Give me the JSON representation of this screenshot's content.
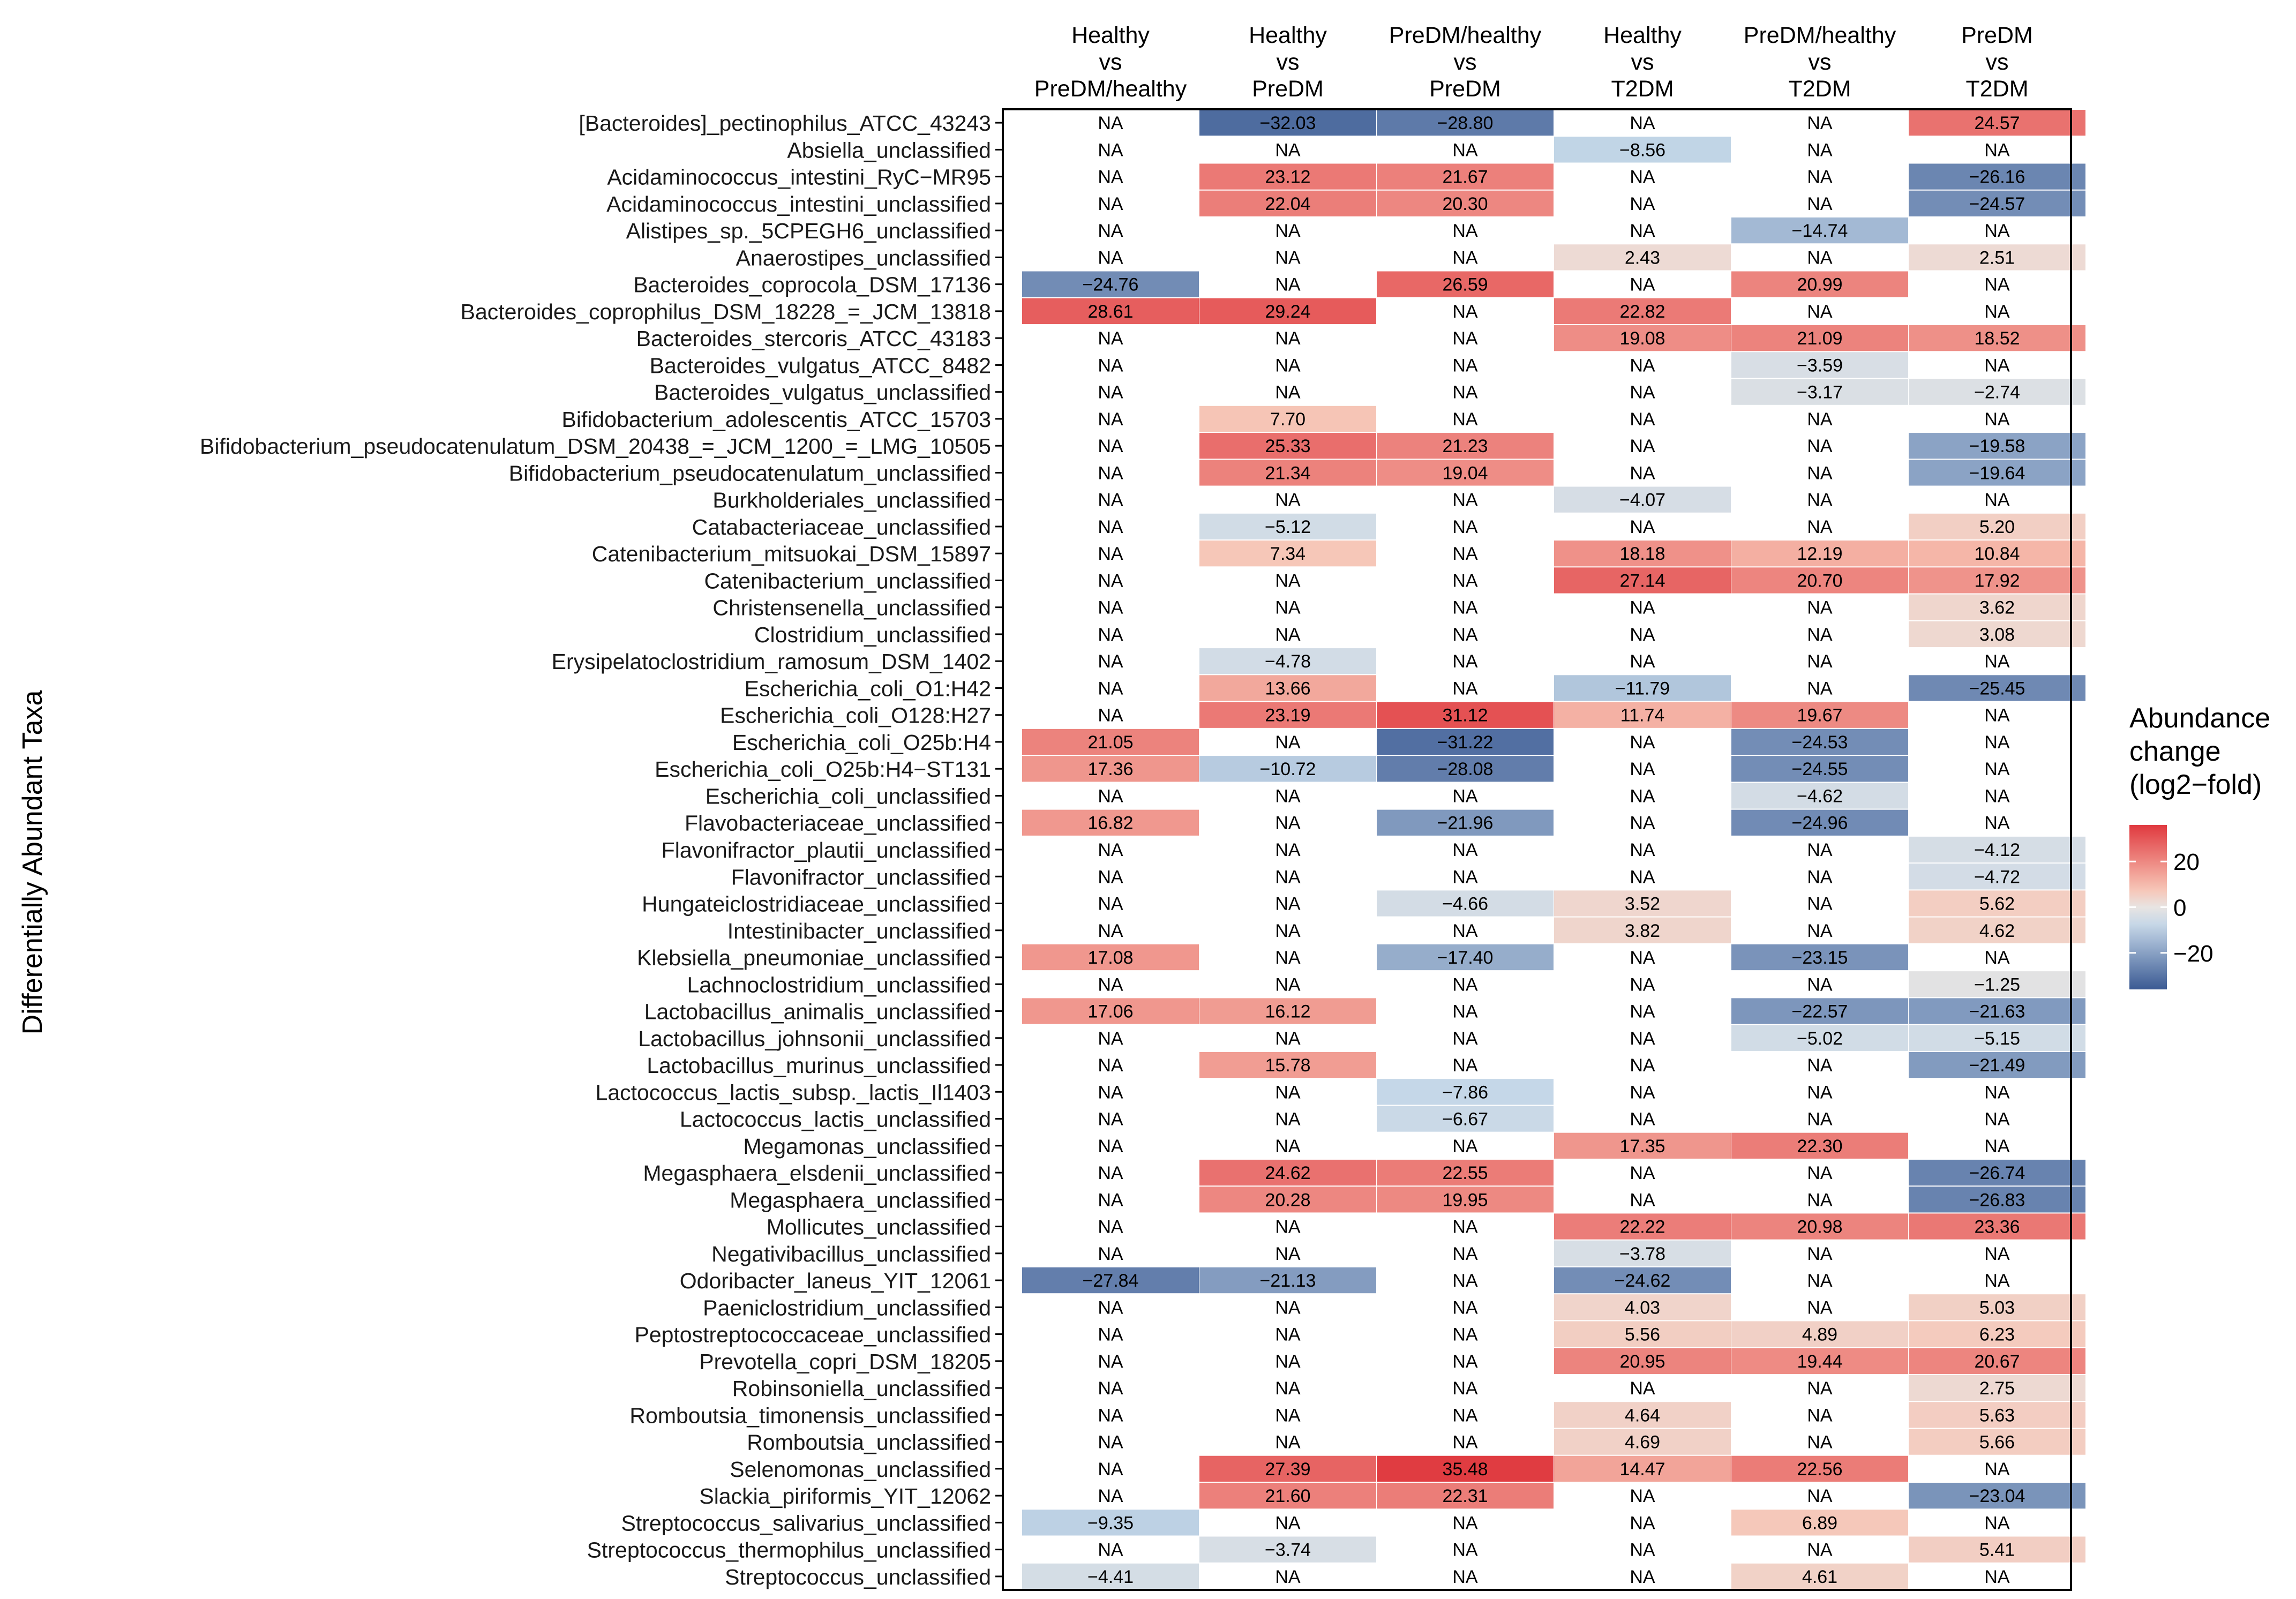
{
  "chart_data": {
    "type": "heatmap",
    "ylabel": "Differentially Abundant Taxa",
    "columns": [
      [
        "Healthy",
        "vs",
        "PreDM/healthy"
      ],
      [
        "Healthy",
        "vs",
        "PreDM"
      ],
      [
        "PreDM/healthy",
        "vs",
        "PreDM"
      ],
      [
        "Healthy",
        "vs",
        "T2DM"
      ],
      [
        "PreDM/healthy",
        "vs",
        "T2DM"
      ],
      [
        "PreDM",
        "vs",
        "T2DM"
      ]
    ],
    "rows": [
      "[Bacteroides]_pectinophilus_ATCC_43243",
      "Absiella_unclassified",
      "Acidaminococcus_intestini_RyC−MR95",
      "Acidaminococcus_intestini_unclassified",
      "Alistipes_sp._5CPEGH6_unclassified",
      "Anaerostipes_unclassified",
      "Bacteroides_coprocola_DSM_17136",
      "Bacteroides_coprophilus_DSM_18228_=_JCM_13818",
      "Bacteroides_stercoris_ATCC_43183",
      "Bacteroides_vulgatus_ATCC_8482",
      "Bacteroides_vulgatus_unclassified",
      "Bifidobacterium_adolescentis_ATCC_15703",
      "Bifidobacterium_pseudocatenulatum_DSM_20438_=_JCM_1200_=_LMG_10505",
      "Bifidobacterium_pseudocatenulatum_unclassified",
      "Burkholderiales_unclassified",
      "Catabacteriaceae_unclassified",
      "Catenibacterium_mitsuokai_DSM_15897",
      "Catenibacterium_unclassified",
      "Christensenella_unclassified",
      "Clostridium_unclassified",
      "Erysipelatoclostridium_ramosum_DSM_1402",
      "Escherichia_coli_O1:H42",
      "Escherichia_coli_O128:H27",
      "Escherichia_coli_O25b:H4",
      "Escherichia_coli_O25b:H4−ST131",
      "Escherichia_coli_unclassified",
      "Flavobacteriaceae_unclassified",
      "Flavonifractor_plautii_unclassified",
      "Flavonifractor_unclassified",
      "Hungateiclostridiaceae_unclassified",
      "Intestinibacter_unclassified",
      "Klebsiella_pneumoniae_unclassified",
      "Lachnoclostridium_unclassified",
      "Lactobacillus_animalis_unclassified",
      "Lactobacillus_johnsonii_unclassified",
      "Lactobacillus_murinus_unclassified",
      "Lactococcus_lactis_subsp._lactis_Il1403",
      "Lactococcus_lactis_unclassified",
      "Megamonas_unclassified",
      "Megasphaera_elsdenii_unclassified",
      "Megasphaera_unclassified",
      "Mollicutes_unclassified",
      "Negativibacillus_unclassified",
      "Odoribacter_laneus_YIT_12061",
      "Paeniclostridium_unclassified",
      "Peptostreptococcaceae_unclassified",
      "Prevotella_copri_DSM_18205",
      "Robinsoniella_unclassified",
      "Romboutsia_timonensis_unclassified",
      "Romboutsia_unclassified",
      "Selenomonas_unclassified",
      "Slackia_piriformis_YIT_12062",
      "Streptococcus_salivarius_unclassified",
      "Streptococcus_thermophilus_unclassified",
      "Streptococcus_unclassified"
    ],
    "values": [
      [
        "NA",
        "−32.03",
        "−28.80",
        "NA",
        "NA",
        "24.57"
      ],
      [
        "NA",
        "NA",
        "NA",
        "−8.56",
        "NA",
        "NA"
      ],
      [
        "NA",
        "23.12",
        "21.67",
        "NA",
        "NA",
        "−26.16"
      ],
      [
        "NA",
        "22.04",
        "20.30",
        "NA",
        "NA",
        "−24.57"
      ],
      [
        "NA",
        "NA",
        "NA",
        "NA",
        "−14.74",
        "NA"
      ],
      [
        "NA",
        "NA",
        "NA",
        "2.43",
        "NA",
        "2.51"
      ],
      [
        "−24.76",
        "NA",
        "26.59",
        "NA",
        "20.99",
        "NA"
      ],
      [
        "28.61",
        "29.24",
        "NA",
        "22.82",
        "NA",
        "NA"
      ],
      [
        "NA",
        "NA",
        "NA",
        "19.08",
        "21.09",
        "18.52"
      ],
      [
        "NA",
        "NA",
        "NA",
        "NA",
        "−3.59",
        "NA"
      ],
      [
        "NA",
        "NA",
        "NA",
        "NA",
        "−3.17",
        "−2.74"
      ],
      [
        "NA",
        "7.70",
        "NA",
        "NA",
        "NA",
        "NA"
      ],
      [
        "NA",
        "25.33",
        "21.23",
        "NA",
        "NA",
        "−19.58"
      ],
      [
        "NA",
        "21.34",
        "19.04",
        "NA",
        "NA",
        "−19.64"
      ],
      [
        "NA",
        "NA",
        "NA",
        "−4.07",
        "NA",
        "NA"
      ],
      [
        "NA",
        "−5.12",
        "NA",
        "NA",
        "NA",
        "5.20"
      ],
      [
        "NA",
        "7.34",
        "NA",
        "18.18",
        "12.19",
        "10.84"
      ],
      [
        "NA",
        "NA",
        "NA",
        "27.14",
        "20.70",
        "17.92"
      ],
      [
        "NA",
        "NA",
        "NA",
        "NA",
        "NA",
        "3.62"
      ],
      [
        "NA",
        "NA",
        "NA",
        "NA",
        "NA",
        "3.08"
      ],
      [
        "NA",
        "−4.78",
        "NA",
        "NA",
        "NA",
        "NA"
      ],
      [
        "NA",
        "13.66",
        "NA",
        "−11.79",
        "NA",
        "−25.45"
      ],
      [
        "NA",
        "23.19",
        "31.12",
        "11.74",
        "19.67",
        "NA"
      ],
      [
        "21.05",
        "NA",
        "−31.22",
        "NA",
        "−24.53",
        "NA"
      ],
      [
        "17.36",
        "−10.72",
        "−28.08",
        "NA",
        "−24.55",
        "NA"
      ],
      [
        "NA",
        "NA",
        "NA",
        "NA",
        "−4.62",
        "NA"
      ],
      [
        "16.82",
        "NA",
        "−21.96",
        "NA",
        "−24.96",
        "NA"
      ],
      [
        "NA",
        "NA",
        "NA",
        "NA",
        "NA",
        "−4.12"
      ],
      [
        "NA",
        "NA",
        "NA",
        "NA",
        "NA",
        "−4.72"
      ],
      [
        "NA",
        "NA",
        "−4.66",
        "3.52",
        "NA",
        "5.62"
      ],
      [
        "NA",
        "NA",
        "NA",
        "3.82",
        "NA",
        "4.62"
      ],
      [
        "17.08",
        "NA",
        "−17.40",
        "NA",
        "−23.15",
        "NA"
      ],
      [
        "NA",
        "NA",
        "NA",
        "NA",
        "NA",
        "−1.25"
      ],
      [
        "17.06",
        "16.12",
        "NA",
        "NA",
        "−22.57",
        "−21.63"
      ],
      [
        "NA",
        "NA",
        "NA",
        "NA",
        "−5.02",
        "−5.15"
      ],
      [
        "NA",
        "15.78",
        "NA",
        "NA",
        "NA",
        "−21.49"
      ],
      [
        "NA",
        "NA",
        "−7.86",
        "NA",
        "NA",
        "NA"
      ],
      [
        "NA",
        "NA",
        "−6.67",
        "NA",
        "NA",
        "NA"
      ],
      [
        "NA",
        "NA",
        "NA",
        "17.35",
        "22.30",
        "NA"
      ],
      [
        "NA",
        "24.62",
        "22.55",
        "NA",
        "NA",
        "−26.74"
      ],
      [
        "NA",
        "20.28",
        "19.95",
        "NA",
        "NA",
        "−26.83"
      ],
      [
        "NA",
        "NA",
        "NA",
        "22.22",
        "20.98",
        "23.36"
      ],
      [
        "NA",
        "NA",
        "NA",
        "−3.78",
        "NA",
        "NA"
      ],
      [
        "−27.84",
        "−21.13",
        "NA",
        "−24.62",
        "NA",
        "NA"
      ],
      [
        "NA",
        "NA",
        "NA",
        "4.03",
        "NA",
        "5.03"
      ],
      [
        "NA",
        "NA",
        "NA",
        "5.56",
        "4.89",
        "6.23"
      ],
      [
        "NA",
        "NA",
        "NA",
        "20.95",
        "19.44",
        "20.67"
      ],
      [
        "NA",
        "NA",
        "NA",
        "NA",
        "NA",
        "2.75"
      ],
      [
        "NA",
        "NA",
        "NA",
        "4.64",
        "NA",
        "5.63"
      ],
      [
        "NA",
        "NA",
        "NA",
        "4.69",
        "NA",
        "5.66"
      ],
      [
        "NA",
        "27.39",
        "35.48",
        "14.47",
        "22.56",
        "NA"
      ],
      [
        "NA",
        "21.60",
        "22.31",
        "NA",
        "NA",
        "−23.04"
      ],
      [
        "−9.35",
        "NA",
        "NA",
        "NA",
        "6.89",
        "NA"
      ],
      [
        "NA",
        "−3.74",
        "NA",
        "NA",
        "NA",
        "5.41"
      ],
      [
        "−4.41",
        "NA",
        "NA",
        "NA",
        "4.61",
        "NA"
      ]
    ],
    "legend": {
      "title": [
        "Abundance",
        "change",
        "(log2−fold)"
      ],
      "ticks": [
        {
          "value": 20,
          "label": "20"
        },
        {
          "value": 0,
          "label": "0"
        },
        {
          "value": -20,
          "label": "−20"
        }
      ],
      "range": [
        -36,
        36
      ],
      "placement": "right"
    },
    "colors": {
      "low": "#3b5a93",
      "mid_low": "#c4d7e8",
      "mid": "#e8e4e2",
      "mid_high": "#f7c4b4",
      "high": "#e0393f"
    }
  }
}
